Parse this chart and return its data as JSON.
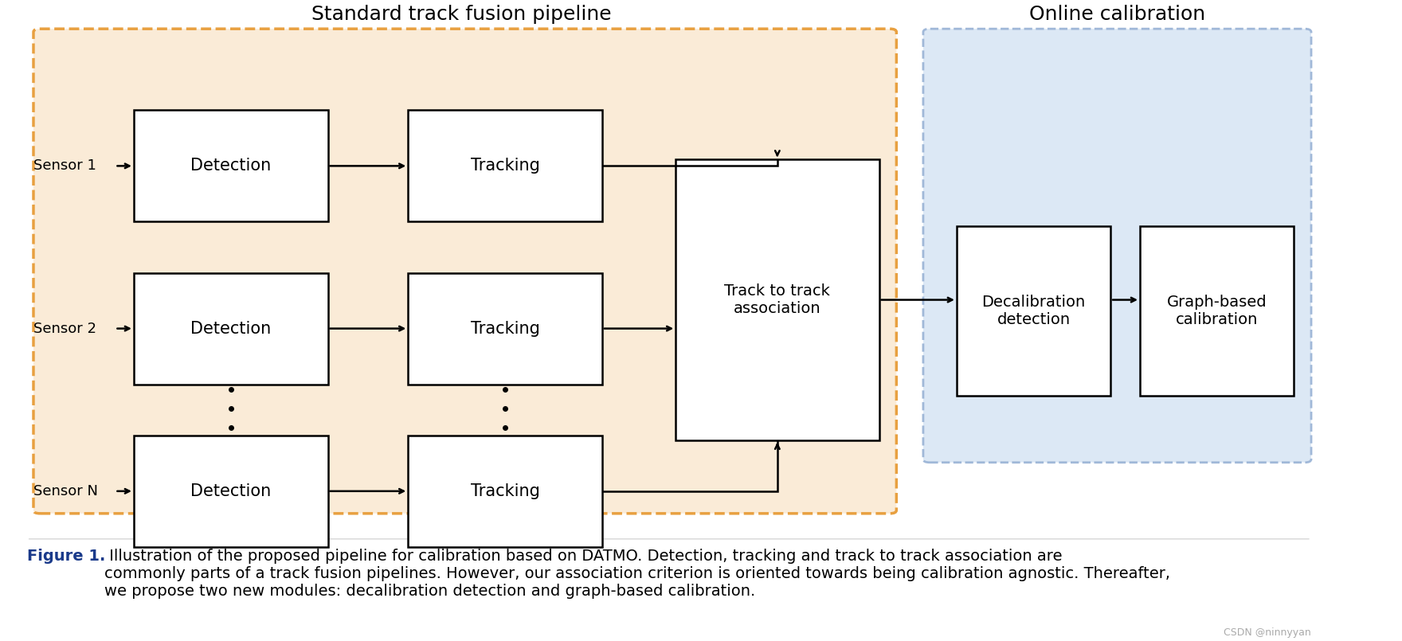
{
  "title_pipeline": "Standard track fusion pipeline",
  "title_online": "Online calibration",
  "bg_color": "#ffffff",
  "pipeline_bg": "#faebd7",
  "pipeline_border": "#e8a040",
  "online_bg": "#dce8f5",
  "online_border": "#a0b8d8",
  "box_bg": "#ffffff",
  "box_border": "#000000",
  "sensors": [
    "Sensor 1",
    "Sensor 2",
    "Sensor N"
  ],
  "caption_bold": "Figure 1.",
  "caption_text": " Illustration of the proposed pipeline for calibration based on DATMO. Detection, tracking and track to track association are\ncommonly parts of a track fusion pipelines. However, our association criterion is oriented towards being calibration agnostic. Thereafter,\nwe propose two new modules: decalibration detection and graph-based calibration.",
  "watermark": "CSDN @ninnyyan"
}
